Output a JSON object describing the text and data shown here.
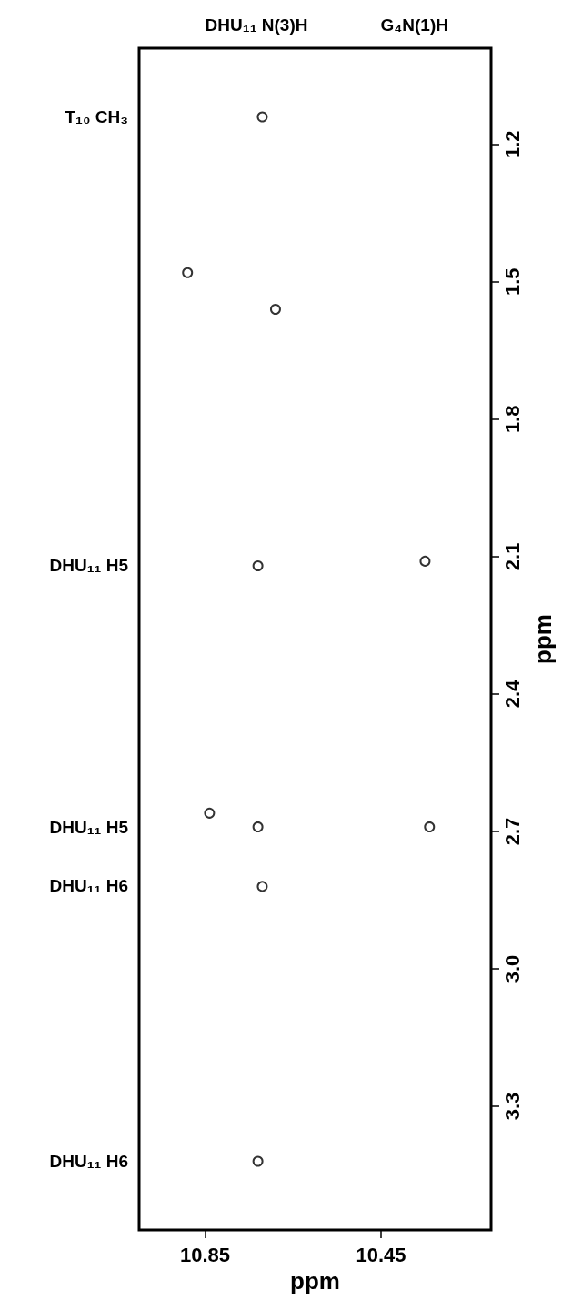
{
  "chart_data": {
    "type": "scatter",
    "xlabel": "ppm",
    "ylabel": "ppm",
    "xlim": [
      11.0,
      10.2
    ],
    "ylim": [
      3.57,
      0.99
    ],
    "xticks": [
      10.85,
      10.45
    ],
    "yticks": [
      1.2,
      1.5,
      1.8,
      2.1,
      2.4,
      2.7,
      {
        "value": 3.0,
        "label": "3.0"
      },
      3.3
    ],
    "x": [
      10.72,
      10.89,
      10.69,
      10.73,
      10.35,
      10.73,
      10.72,
      10.34,
      10.84,
      10.73
    ],
    "values": [
      1.14,
      1.48,
      1.56,
      2.12,
      2.11,
      2.69,
      2.82,
      2.69,
      2.66,
      3.42
    ],
    "color": "#000000",
    "marker": "circle",
    "grid": false,
    "annotations": [
      "DHU₁₁ N(3)H",
      "G₄N(1)H",
      "T₁₀ CH₃",
      "DHU₁₁ H5",
      "DHU₁₁ H5",
      "DHU₁₁ H6",
      "DHU₁₁ H6"
    ]
  }
}
